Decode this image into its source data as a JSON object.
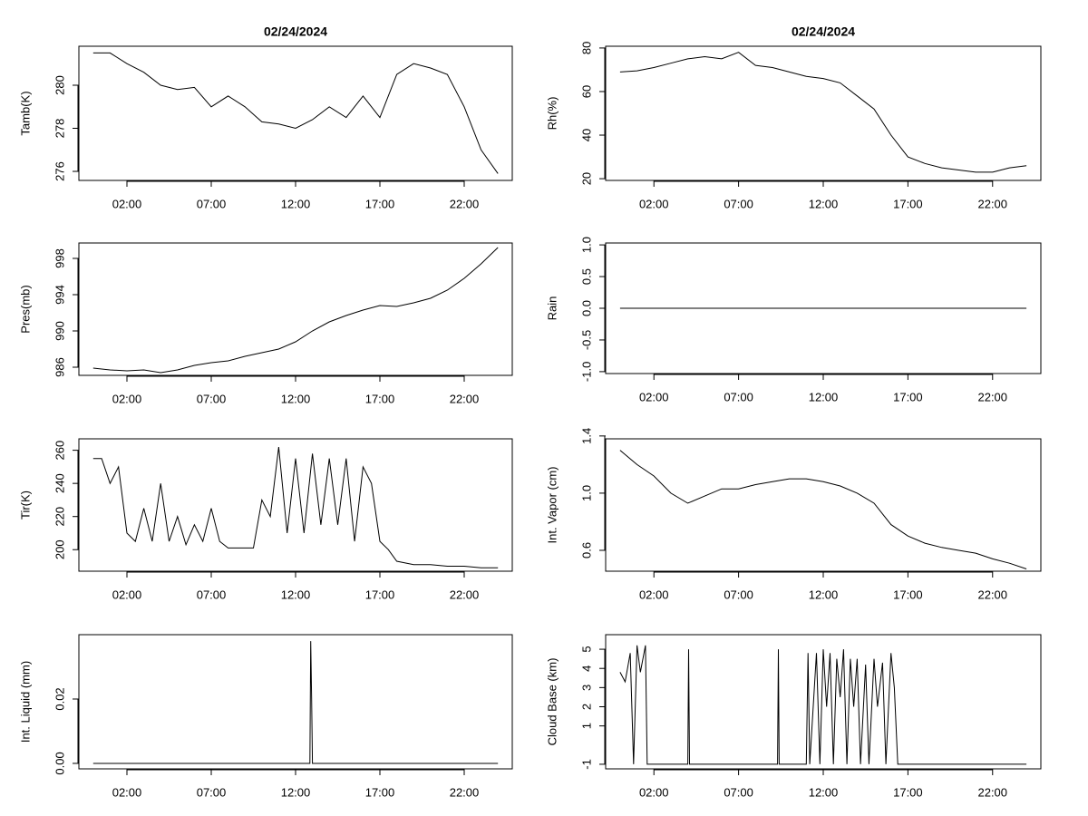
{
  "chart_data": [
    {
      "type": "line",
      "title": "02/24/2024",
      "ylabel": "Tamb(K)",
      "color": "#000000",
      "x": [
        0,
        1,
        2,
        3,
        4,
        5,
        6,
        7,
        8,
        9,
        10,
        11,
        12,
        13,
        14,
        15,
        16,
        17,
        18,
        19,
        20,
        21,
        22,
        23,
        24
      ],
      "values": [
        281.5,
        281.5,
        281.0,
        280.6,
        280.0,
        279.8,
        279.9,
        279.0,
        279.5,
        279.0,
        278.3,
        278.2,
        278.0,
        278.4,
        279.0,
        278.5,
        279.5,
        278.5,
        280.5,
        281.0,
        280.8,
        280.5,
        279.0,
        277.0,
        275.9
      ],
      "xlim": [
        -0.85,
        24.85
      ],
      "ylim": [
        275.58,
        281.81
      ],
      "xticks": [
        {
          "value": 2,
          "label": "02:00"
        },
        {
          "value": 7,
          "label": "07:00"
        },
        {
          "value": 12,
          "label": "12:00"
        },
        {
          "value": 17,
          "label": "17:00"
        },
        {
          "value": 22,
          "label": "22:00"
        }
      ],
      "yticks": [
        276,
        278,
        280
      ]
    },
    {
      "type": "line",
      "title": "02/24/2024",
      "ylabel": "Rh(%)",
      "color": "#000000",
      "x": [
        0,
        1,
        2,
        3,
        4,
        5,
        6,
        7,
        8,
        9,
        10,
        11,
        12,
        13,
        14,
        15,
        16,
        17,
        18,
        19,
        20,
        21,
        22,
        23,
        24
      ],
      "values": [
        69,
        69.5,
        71,
        73,
        75,
        76,
        75,
        78,
        72,
        71,
        69,
        67,
        66,
        64,
        58,
        52,
        40,
        30,
        27,
        25,
        24,
        23,
        23,
        25,
        26
      ],
      "xlim": [
        -0.85,
        24.85
      ],
      "ylim": [
        19.2,
        80.8
      ],
      "xticks": [
        {
          "value": 2,
          "label": "02:00"
        },
        {
          "value": 7,
          "label": "07:00"
        },
        {
          "value": 12,
          "label": "12:00"
        },
        {
          "value": 17,
          "label": "17:00"
        },
        {
          "value": 22,
          "label": "22:00"
        }
      ],
      "yticks": [
        20,
        40,
        60,
        80
      ]
    },
    {
      "type": "line",
      "ylabel": "Pres(mb)",
      "color": "#000000",
      "x": [
        0,
        1,
        2,
        3,
        4,
        5,
        6,
        7,
        8,
        9,
        10,
        11,
        12,
        13,
        14,
        15,
        16,
        17,
        18,
        19,
        20,
        21,
        22,
        23,
        24
      ],
      "values": [
        985.9,
        985.7,
        985.6,
        985.7,
        985.4,
        985.7,
        986.2,
        986.5,
        986.7,
        987.2,
        987.6,
        988.0,
        988.8,
        990.0,
        991.0,
        991.7,
        992.3,
        992.8,
        992.7,
        993.1,
        993.6,
        994.5,
        995.8,
        997.4,
        999.2
      ],
      "xlim": [
        -0.85,
        24.85
      ],
      "ylim": [
        985.1,
        999.7
      ],
      "xticks": [
        {
          "value": 2,
          "label": "02:00"
        },
        {
          "value": 7,
          "label": "07:00"
        },
        {
          "value": 12,
          "label": "12:00"
        },
        {
          "value": 17,
          "label": "17:00"
        },
        {
          "value": 22,
          "label": "22:00"
        }
      ],
      "yticks": [
        986,
        990,
        994,
        998
      ]
    },
    {
      "type": "line",
      "ylabel": "Rain",
      "color": "#000000",
      "x": [
        0,
        24
      ],
      "values": [
        0,
        0
      ],
      "xlim": [
        -0.85,
        24.85
      ],
      "ylim": [
        -1.03,
        1.03
      ],
      "xticks": [
        {
          "value": 2,
          "label": "02:00"
        },
        {
          "value": 7,
          "label": "07:00"
        },
        {
          "value": 12,
          "label": "12:00"
        },
        {
          "value": 17,
          "label": "17:00"
        },
        {
          "value": 22,
          "label": "22:00"
        }
      ],
      "yticks": [
        {
          "value": -1,
          "label": "-1.0"
        },
        -0.5,
        {
          "value": 0,
          "label": "0.0"
        },
        0.5,
        {
          "value": 1,
          "label": "1.0"
        }
      ]
    },
    {
      "type": "line",
      "ylabel": "Tir(K)",
      "color": "#000000",
      "x": [
        0,
        0.5,
        1,
        1.5,
        2,
        2.5,
        3,
        3.5,
        4,
        4.5,
        5,
        5.5,
        6,
        6.5,
        7,
        7.5,
        8,
        9,
        9.5,
        10,
        10.5,
        11,
        11.5,
        12,
        12.5,
        13,
        13.5,
        14,
        14.5,
        15,
        15.5,
        16,
        16.5,
        17,
        17.5,
        18,
        19,
        20,
        21,
        22,
        23,
        24
      ],
      "values": [
        255,
        255,
        240,
        250,
        210,
        205,
        225,
        205,
        240,
        205,
        220,
        203,
        215,
        205,
        225,
        205,
        201,
        201,
        201,
        230,
        220,
        262,
        210,
        255,
        210,
        258,
        215,
        255,
        215,
        255,
        205,
        250,
        240,
        205,
        200,
        193,
        191,
        191,
        190,
        190,
        189,
        189
      ],
      "xlim": [
        -0.85,
        24.85
      ],
      "ylim": [
        187,
        266.9
      ],
      "xticks": [
        {
          "value": 2,
          "label": "02:00"
        },
        {
          "value": 7,
          "label": "07:00"
        },
        {
          "value": 12,
          "label": "12:00"
        },
        {
          "value": 17,
          "label": "17:00"
        },
        {
          "value": 22,
          "label": "22:00"
        }
      ],
      "yticks": [
        200,
        220,
        240,
        260
      ]
    },
    {
      "type": "line",
      "ylabel": "Int. Vapor (cm)",
      "color": "#000000",
      "x": [
        0,
        1,
        2,
        3,
        4,
        5,
        6,
        7,
        8,
        9,
        10,
        11,
        12,
        13,
        14,
        15,
        16,
        17,
        18,
        19,
        20,
        21,
        22,
        23,
        24
      ],
      "values": [
        1.3,
        1.2,
        1.12,
        1.0,
        0.93,
        0.98,
        1.03,
        1.03,
        1.06,
        1.08,
        1.1,
        1.1,
        1.08,
        1.05,
        1.0,
        0.93,
        0.78,
        0.7,
        0.65,
        0.62,
        0.6,
        0.58,
        0.54,
        0.51,
        0.47
      ],
      "xlim": [
        -0.85,
        24.85
      ],
      "ylim": [
        0.454,
        1.38
      ],
      "xticks": [
        {
          "value": 2,
          "label": "02:00"
        },
        {
          "value": 7,
          "label": "07:00"
        },
        {
          "value": 12,
          "label": "12:00"
        },
        {
          "value": 17,
          "label": "17:00"
        },
        {
          "value": 22,
          "label": "22:00"
        }
      ],
      "yticks": [
        0.6,
        {
          "value": 1,
          "label": "1.0"
        },
        1.4
      ]
    },
    {
      "type": "line",
      "ylabel": "Int. Liquid (mm)",
      "color": "#000000",
      "x": [
        0,
        12.85,
        12.9,
        12.95,
        13.0,
        24
      ],
      "values": [
        0,
        0,
        0.038,
        0.02,
        0,
        0
      ],
      "xlim": [
        -0.85,
        24.85
      ],
      "ylim": [
        -0.0017,
        0.04
      ],
      "xticks": [
        {
          "value": 2,
          "label": "02:00"
        },
        {
          "value": 7,
          "label": "07:00"
        },
        {
          "value": 12,
          "label": "12:00"
        },
        {
          "value": 17,
          "label": "17:00"
        },
        {
          "value": 22,
          "label": "22:00"
        }
      ],
      "yticks": [
        {
          "value": 0,
          "label": "0.00"
        },
        0.02
      ]
    },
    {
      "type": "line",
      "ylabel": "Cloud Base (km)",
      "color": "#000000",
      "x": [
        0,
        0.3,
        0.6,
        0.8,
        1,
        1.2,
        1.5,
        1.6,
        4,
        4.05,
        4.1,
        9.3,
        9.35,
        9.4,
        11,
        11.1,
        11.2,
        11.6,
        11.8,
        12,
        12.2,
        12.4,
        12.6,
        12.8,
        13.0,
        13.2,
        13.4,
        13.6,
        13.8,
        14,
        14.2,
        14.5,
        14.7,
        15,
        15.2,
        15.5,
        15.7,
        16,
        16.2,
        16.4,
        24
      ],
      "values": [
        3.8,
        3.3,
        4.8,
        -1,
        5.2,
        3.8,
        5.2,
        -1,
        -1,
        5,
        -1,
        -1,
        5,
        -1,
        -1,
        4.8,
        -1,
        4.8,
        -1,
        5,
        2,
        4.8,
        -1,
        4.5,
        2.5,
        5,
        -1,
        4.5,
        2,
        4.5,
        -1,
        4.2,
        -1,
        4.5,
        2,
        4.3,
        -1,
        4.8,
        3,
        -1,
        -1
      ],
      "xlim": [
        -0.85,
        24.85
      ],
      "ylim": [
        -1.24,
        5.76
      ],
      "xticks": [
        {
          "value": 2,
          "label": "02:00"
        },
        {
          "value": 7,
          "label": "07:00"
        },
        {
          "value": 12,
          "label": "12:00"
        },
        {
          "value": 17,
          "label": "17:00"
        },
        {
          "value": 22,
          "label": "22:00"
        }
      ],
      "yticks": [
        -1,
        1,
        2,
        3,
        4,
        5
      ]
    }
  ]
}
